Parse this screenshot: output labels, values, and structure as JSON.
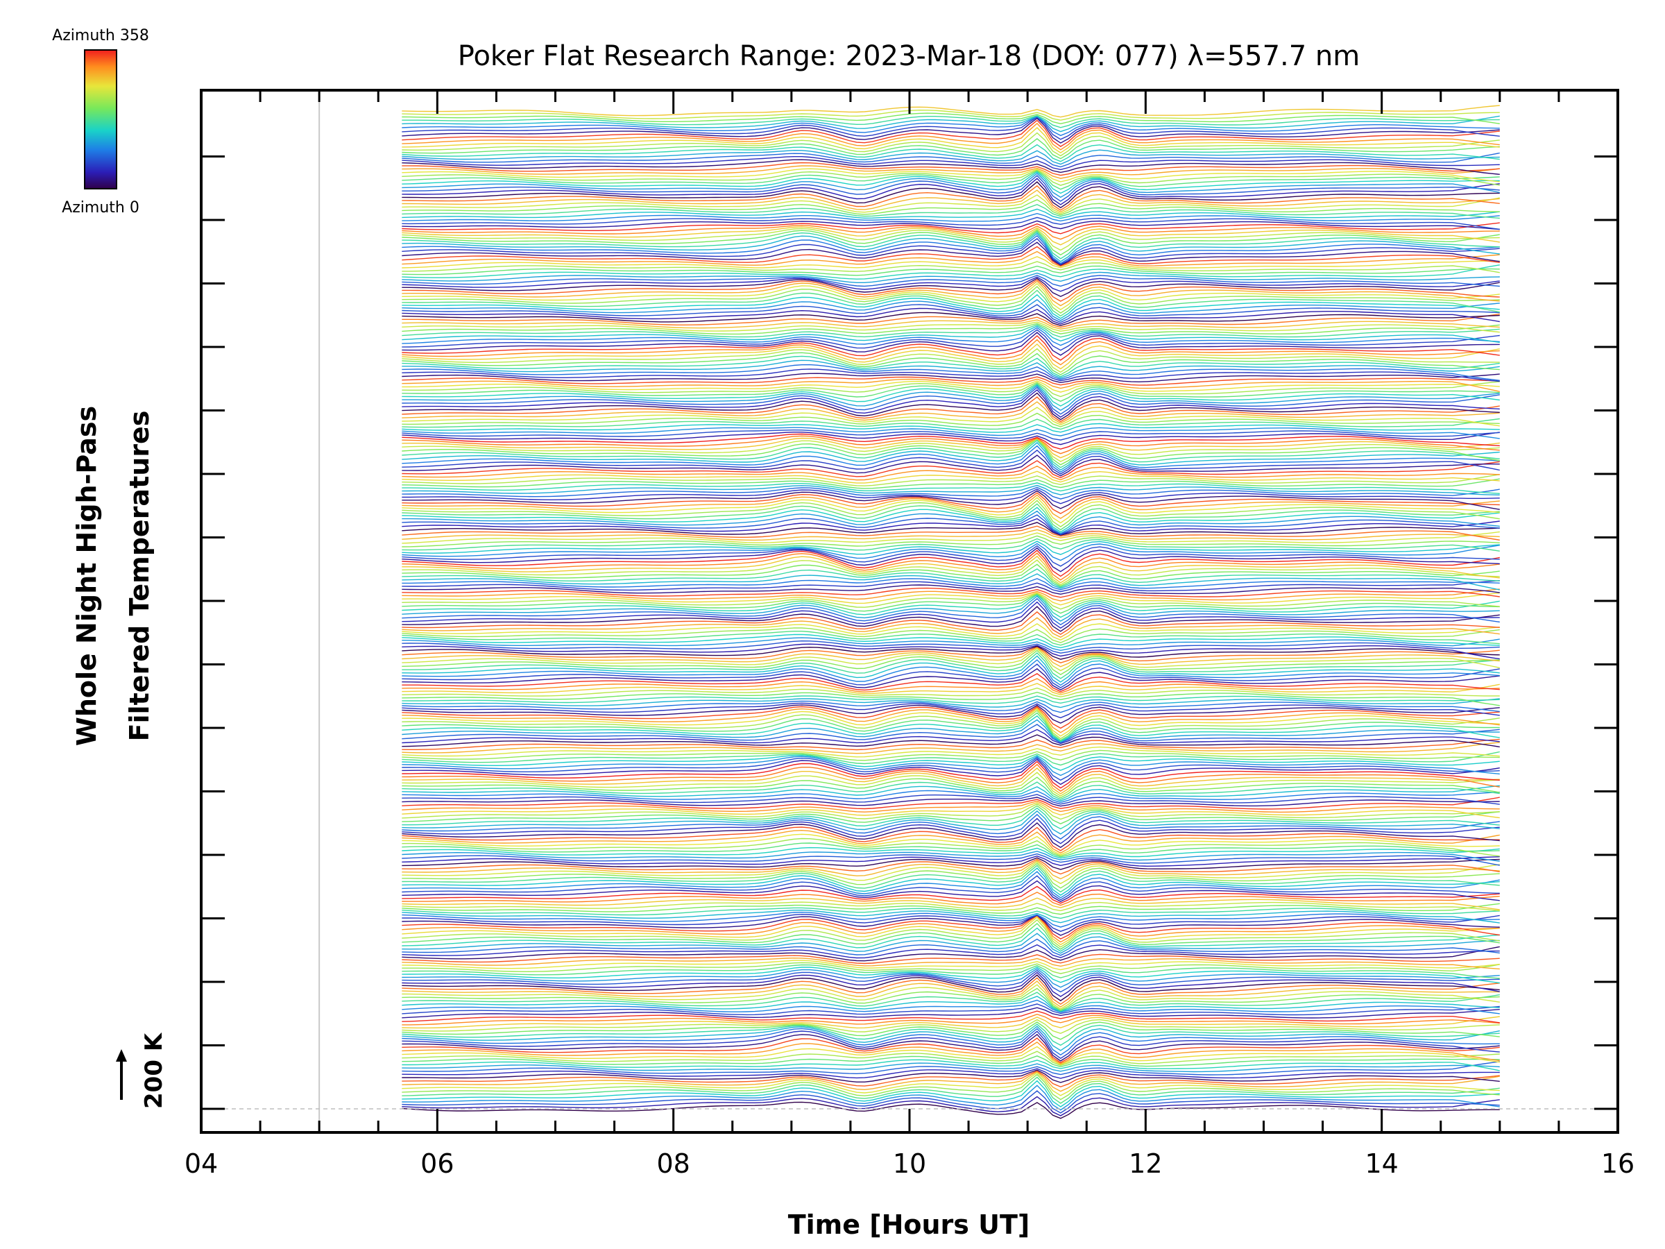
{
  "chart_data": {
    "type": "line",
    "title": "Poker Flat Research Range: 2023-Mar-18 (DOY: 077) λ=557.7 nm",
    "xlabel": "Time [Hours UT]",
    "ylabel_lines": [
      "Whole Night High-Pass",
      "Filtered Temperatures"
    ],
    "x_ticks": [
      "04",
      "06",
      "08",
      "10",
      "12",
      "14",
      "16"
    ],
    "x_range": [
      4,
      16
    ],
    "data_x_range": [
      5.7,
      15.0
    ],
    "reference_line_x": 5.0,
    "colorbar": {
      "top_label": "Azimuth 358",
      "bottom_label": "Azimuth 0",
      "colormap": "rainbow (blue/purple → red)"
    },
    "scale_bar": {
      "label": "200 K"
    },
    "series_count": 320,
    "stacked_offset": "equal vertical spacing, one trace per azimuth",
    "features": [
      {
        "x": 9.1,
        "description": "positive bump"
      },
      {
        "x": 9.6,
        "description": "dip"
      },
      {
        "x": 10.1,
        "description": "positive bump"
      },
      {
        "x": 10.75,
        "description": "dip"
      },
      {
        "x": 11.1,
        "description": "sharp peak"
      },
      {
        "x": 11.25,
        "description": "sharp drop"
      },
      {
        "x": 11.55,
        "description": "secondary peak"
      }
    ],
    "colors": {
      "axis": "#000000",
      "reference_line": "#c8c8c8"
    }
  }
}
